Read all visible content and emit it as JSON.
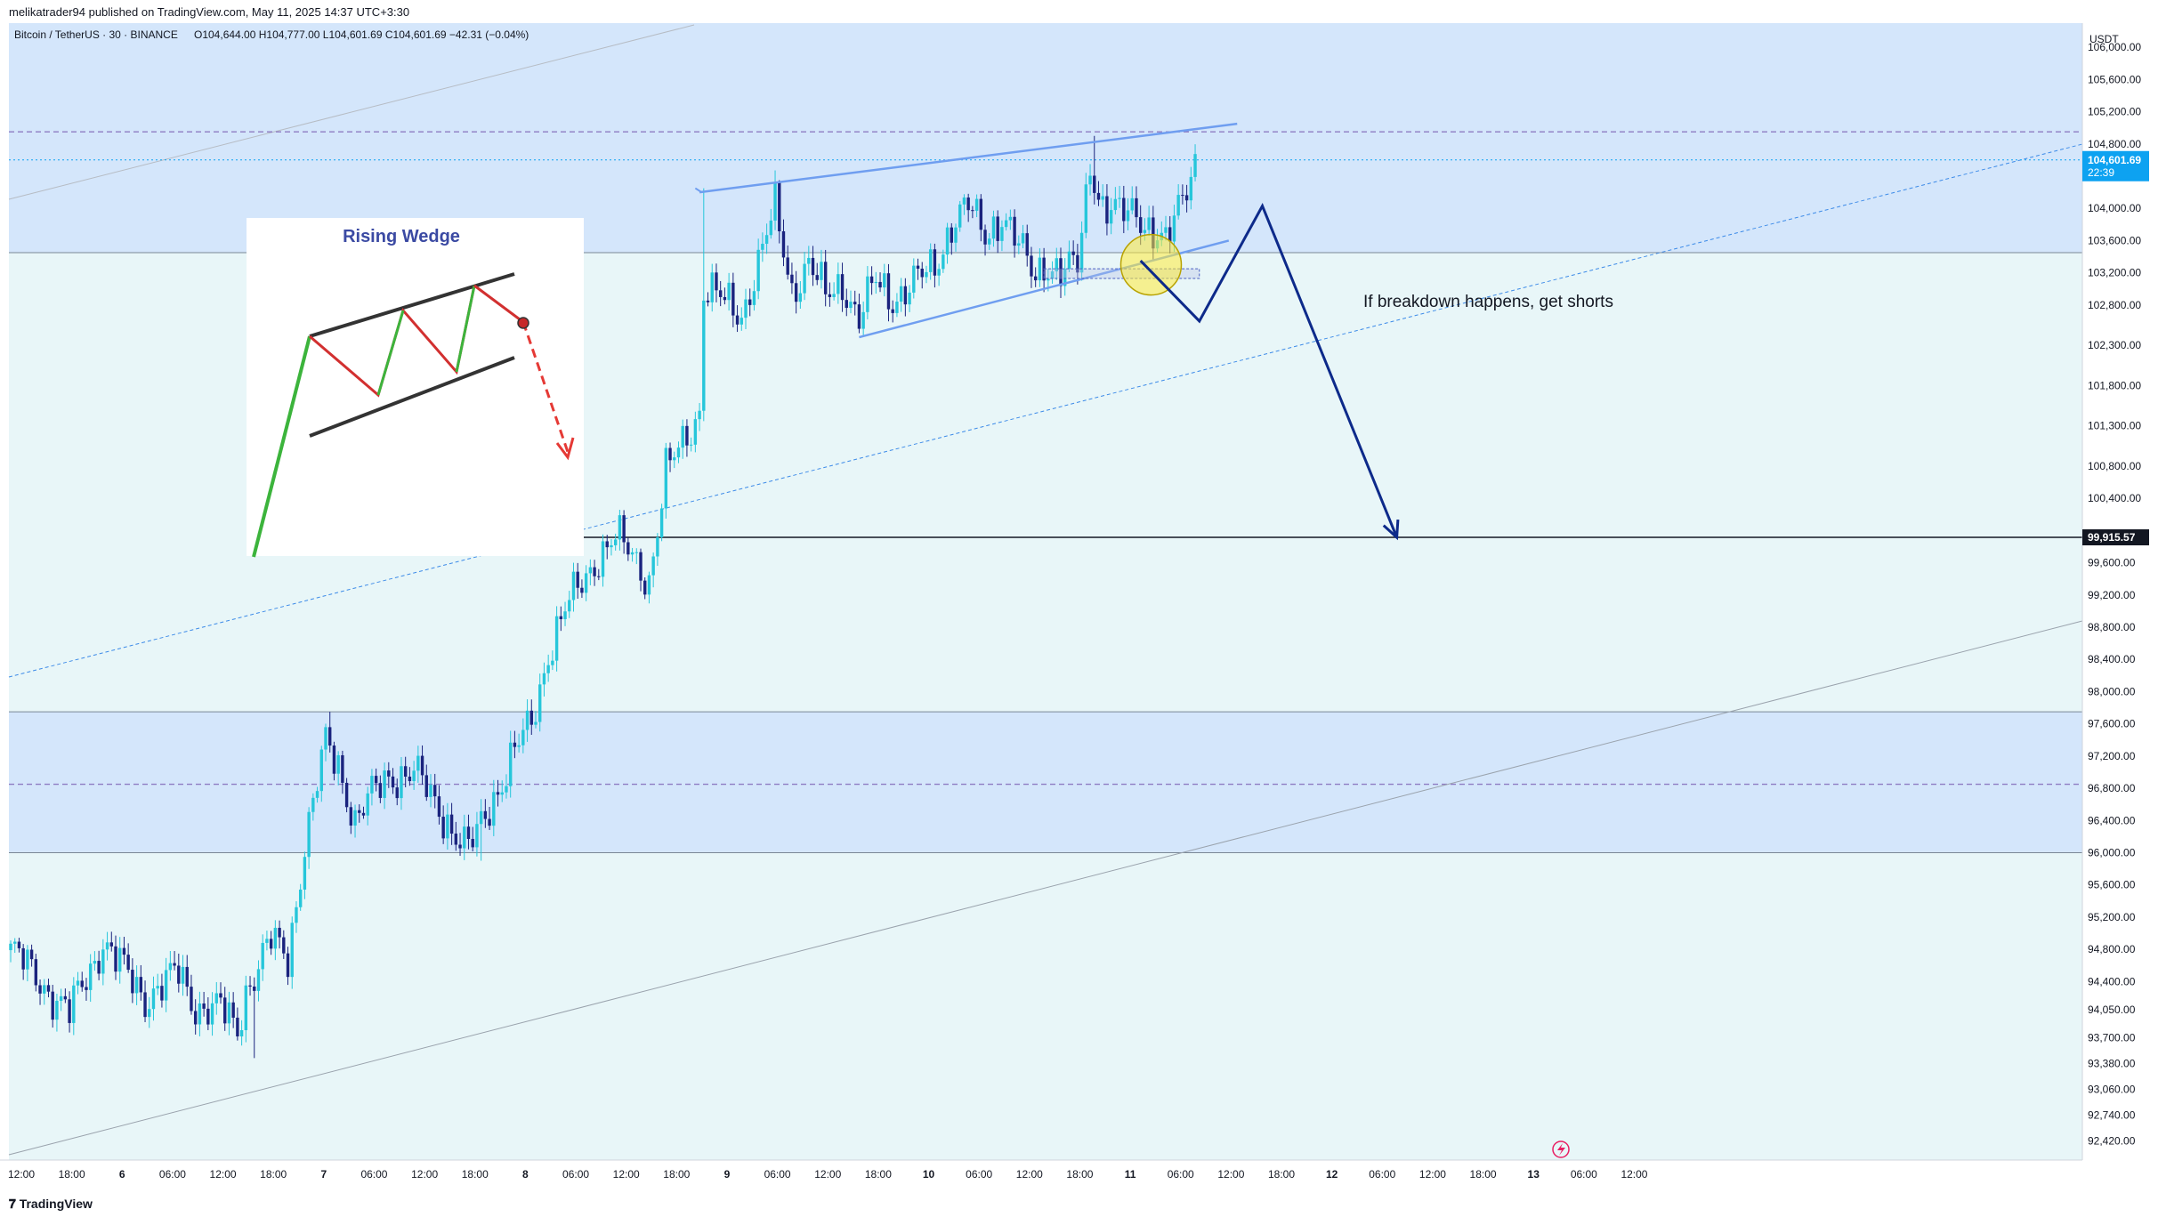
{
  "header": {
    "publisher": "melikatrader94 published on TradingView.com, May 11, 2025 14:37 UTC+3:30"
  },
  "legend": {
    "symbol": "Bitcoin / TetherUS · 30 · BINANCE",
    "ohlc": "O104,644.00 H104,777.00 L104,601.69 C104,601.69 −42.31 (−0.04%)"
  },
  "price_axis": {
    "currency": "USDT",
    "labels": [
      "106,000.00",
      "105,600.00",
      "105,200.00",
      "104,800.00",
      "104,000.00",
      "103,600.00",
      "103,200.00",
      "102,800.00",
      "102,300.00",
      "101,800.00",
      "101,300.00",
      "100,800.00",
      "100,400.00",
      "99,600.00",
      "99,200.00",
      "98,800.00",
      "98,400.00",
      "98,000.00",
      "97,600.00",
      "97,200.00",
      "96,800.00",
      "96,400.00",
      "96,000.00",
      "95,600.00",
      "95,200.00",
      "94,800.00",
      "94,400.00",
      "94,050.00",
      "93,700.00",
      "93,380.00",
      "93,060.00",
      "92,740.00",
      "92,420.00"
    ],
    "current_price": "104,601.69",
    "countdown": "22:39",
    "target_price": "99,915.57"
  },
  "time_axis": {
    "labels": [
      "12:00",
      "18:00",
      "6",
      "06:00",
      "12:00",
      "18:00",
      "7",
      "06:00",
      "12:00",
      "18:00",
      "8",
      "06:00",
      "12:00",
      "18:00",
      "9",
      "06:00",
      "12:00",
      "18:00",
      "10",
      "06:00",
      "12:00",
      "18:00",
      "11",
      "06:00",
      "12:00",
      "18:00",
      "12",
      "06:00",
      "12:00",
      "18:00",
      "13",
      "06:00",
      "12:00"
    ]
  },
  "annotations": {
    "breakdown_note": "If breakdown happens, get shorts",
    "inset_title": "Rising Wedge"
  },
  "footer": {
    "brand": "TradingView"
  },
  "colors": {
    "up": "#26c6da",
    "down": "#1a237e",
    "wedge": "#6f9ef0",
    "projection": "#0d2a8a",
    "zone": "#d4e6fb",
    "bg": "#e8f6f8",
    "price_badge": "#0da2f1",
    "target_badge": "#131722"
  },
  "chart_data": {
    "type": "candlestick",
    "title": "Bitcoin / TetherUS · 30 · BINANCE",
    "y_unit": "USDT",
    "x_unit": "30-minute bars, May 5–13 2025",
    "close_anchors": [
      [
        0,
        94800
      ],
      [
        8,
        94350
      ],
      [
        14,
        94000
      ],
      [
        22,
        94900
      ],
      [
        26,
        94600
      ],
      [
        32,
        94200
      ],
      [
        40,
        94500
      ],
      [
        44,
        94100
      ],
      [
        50,
        94050
      ],
      [
        54,
        93800
      ],
      [
        56,
        94300
      ],
      [
        62,
        94900
      ],
      [
        66,
        94700
      ],
      [
        70,
        96100
      ],
      [
        75,
        97350
      ],
      [
        78,
        97100
      ],
      [
        82,
        96400
      ],
      [
        86,
        96700
      ],
      [
        90,
        96950
      ],
      [
        96,
        97000
      ],
      [
        100,
        96700
      ],
      [
        104,
        96400
      ],
      [
        108,
        96050
      ],
      [
        110,
        96100
      ],
      [
        114,
        96600
      ],
      [
        118,
        97000
      ],
      [
        120,
        97250
      ],
      [
        124,
        97600
      ],
      [
        128,
        98500
      ],
      [
        132,
        99000
      ],
      [
        136,
        99350
      ],
      [
        140,
        99700
      ],
      [
        144,
        99900
      ],
      [
        148,
        99700
      ],
      [
        152,
        99400
      ],
      [
        154,
        100000
      ],
      [
        156,
        100700
      ],
      [
        160,
        101100
      ],
      [
        164,
        101500
      ],
      [
        165,
        103000
      ],
      [
        168,
        102900
      ],
      [
        174,
        102700
      ],
      [
        178,
        103300
      ],
      [
        182,
        104000
      ],
      [
        186,
        103000
      ],
      [
        190,
        103300
      ],
      [
        194,
        102900
      ],
      [
        198,
        103100
      ],
      [
        202,
        102600
      ],
      [
        206,
        103100
      ],
      [
        210,
        102900
      ],
      [
        214,
        103000
      ],
      [
        220,
        103300
      ],
      [
        224,
        103800
      ],
      [
        228,
        104000
      ],
      [
        232,
        103700
      ],
      [
        236,
        103900
      ],
      [
        240,
        103500
      ],
      [
        244,
        103200
      ],
      [
        246,
        103350
      ],
      [
        250,
        103150
      ],
      [
        254,
        103300
      ],
      [
        257,
        104600
      ],
      [
        260,
        104000
      ],
      [
        264,
        103900
      ],
      [
        268,
        104000
      ],
      [
        272,
        103700
      ],
      [
        275,
        103500
      ],
      [
        278,
        104000
      ],
      [
        281,
        104500
      ],
      [
        282,
        104600
      ]
    ],
    "swing_extremes": [
      {
        "bar": 58,
        "value": 93450,
        "kind": "low"
      },
      {
        "bar": 76,
        "value": 97750,
        "kind": "high"
      },
      {
        "bar": 112,
        "value": 95900,
        "kind": "low"
      },
      {
        "bar": 165,
        "value": 104250,
        "kind": "high"
      },
      {
        "bar": 183,
        "value": 104350,
        "kind": "high"
      },
      {
        "bar": 202,
        "value": 102450,
        "kind": "low"
      },
      {
        "bar": 258,
        "value": 104900,
        "kind": "high"
      },
      {
        "bar": 273,
        "value": 103450,
        "kind": "low"
      }
    ],
    "zones": [
      {
        "from": 103450,
        "to": 106300,
        "label": "resistance zone"
      },
      {
        "from": 96000,
        "to": 97750,
        "label": "demand zone",
        "mid": 96850
      }
    ],
    "levels": [
      {
        "value": 104950,
        "style": "dashed"
      },
      {
        "value": 99915.57,
        "style": "solid",
        "from_bar": 125
      }
    ],
    "wedge": {
      "upper": [
        [
          164,
          104200
        ],
        [
          292,
          105050
        ]
      ],
      "lower": [
        [
          202,
          102400
        ],
        [
          290,
          103600
        ]
      ]
    },
    "projection": [
      [
        269,
        103350
      ],
      [
        283,
        102600
      ],
      [
        298,
        104030
      ],
      [
        330,
        99915.57
      ]
    ],
    "ylim": [
      92250,
      106300
    ]
  }
}
